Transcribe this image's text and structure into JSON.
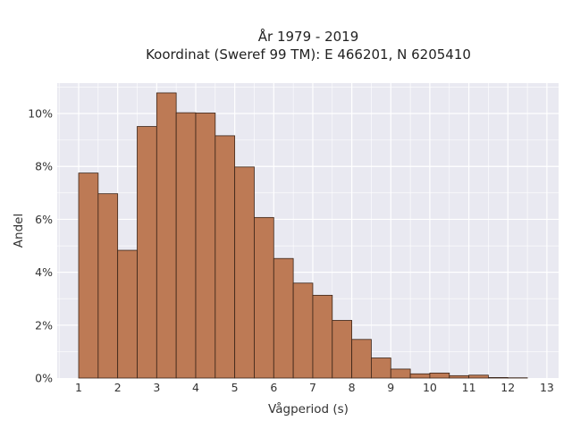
{
  "chart_data": {
    "type": "bar",
    "title_lines": [
      "År 1979 - 2019",
      "Koordinat (Sweref 99 TM): E 466201, N 6205410"
    ],
    "xlabel": "Vågperiod (s)",
    "ylabel": "Andel",
    "xlim": [
      0.45,
      13.3
    ],
    "ylim": [
      0,
      0.1115
    ],
    "x_ticks": [
      1,
      2,
      3,
      4,
      5,
      6,
      7,
      8,
      9,
      10,
      11,
      12,
      13
    ],
    "y_ticks": [
      0,
      0.02,
      0.04,
      0.06,
      0.08,
      0.1
    ],
    "y_tick_labels": [
      "0%",
      "2%",
      "4%",
      "6%",
      "8%",
      "10%"
    ],
    "bin_width": 0.5,
    "bin_start": 1.0,
    "values": [
      0.0775,
      0.0697,
      0.0483,
      0.0951,
      0.1078,
      0.1003,
      0.1002,
      0.0916,
      0.0798,
      0.0607,
      0.0452,
      0.0359,
      0.0313,
      0.0218,
      0.0146,
      0.0076,
      0.0034,
      0.0016,
      0.0019,
      0.0009,
      0.0011,
      0.0002,
      0.0001,
      0.0
    ],
    "grid": true,
    "colors": {
      "bar_fill": "#bd7a55",
      "bar_stroke": "#3a2418",
      "plot_bg": "#e9e9f1",
      "grid": "#ffffff"
    }
  }
}
